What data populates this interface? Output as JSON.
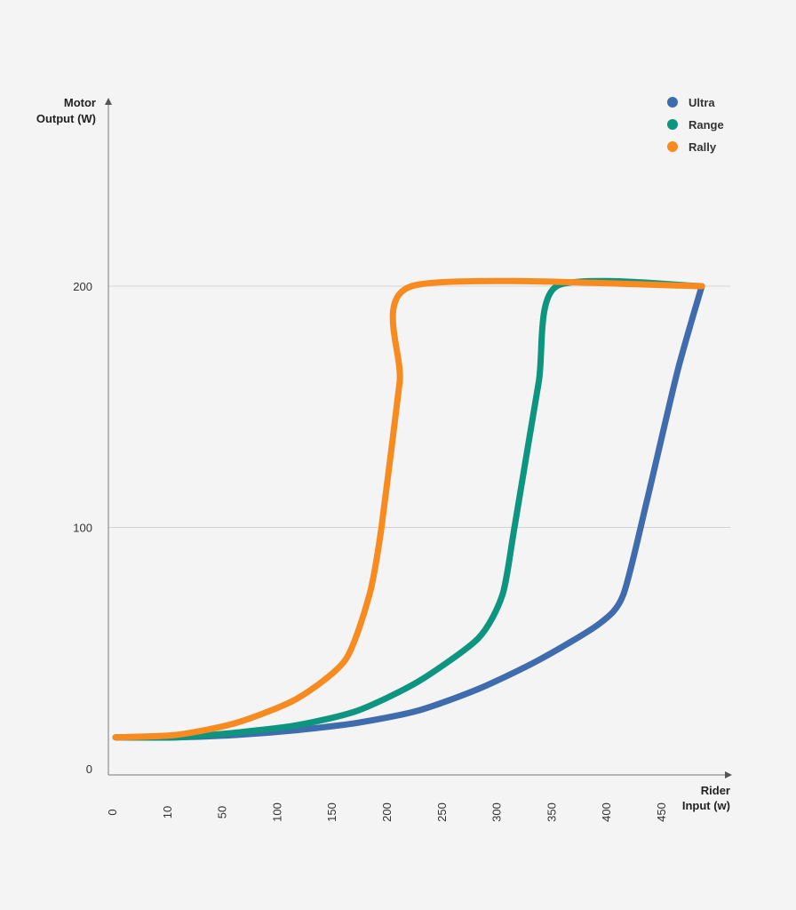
{
  "chart_data": {
    "type": "line",
    "title": "",
    "ylabel": [
      "Motor",
      "Output (W)"
    ],
    "xlabel": [
      "Rider",
      "Input (w)"
    ],
    "x_ticks": [
      "0",
      "10",
      "50",
      "100",
      "150",
      "200",
      "250",
      "300",
      "350",
      "400",
      "450"
    ],
    "y_ticks": [
      {
        "value": 0,
        "label": "0"
      },
      {
        "value": 100,
        "label": "100"
      },
      {
        "value": 200,
        "label": "200"
      }
    ],
    "ylim": [
      0,
      200
    ],
    "grid_y": true,
    "legend_position": "top-right",
    "series": [
      {
        "name": "Ultra",
        "color": "#3f6cad",
        "points": [
          [
            0,
            13
          ],
          [
            50,
            13
          ],
          [
            100,
            14
          ],
          [
            150,
            16
          ],
          [
            200,
            19
          ],
          [
            250,
            24
          ],
          [
            300,
            33
          ],
          [
            350,
            45
          ],
          [
            400,
            60
          ],
          [
            420,
            72
          ],
          [
            440,
            112
          ],
          [
            465,
            165
          ],
          [
            485,
            200
          ]
        ]
      },
      {
        "name": "Range",
        "color": "#0e957f",
        "points": [
          [
            0,
            13
          ],
          [
            50,
            13
          ],
          [
            100,
            15
          ],
          [
            150,
            18
          ],
          [
            200,
            24
          ],
          [
            250,
            36
          ],
          [
            300,
            54
          ],
          [
            320,
            72
          ],
          [
            330,
            100
          ],
          [
            350,
            160
          ],
          [
            365,
            200
          ],
          [
            485,
            200
          ]
        ]
      },
      {
        "name": "Rally",
        "color": "#f78b1f",
        "points": [
          [
            0,
            13
          ],
          [
            50,
            14
          ],
          [
            100,
            19
          ],
          [
            150,
            29
          ],
          [
            190,
            45
          ],
          [
            210,
            72
          ],
          [
            220,
            100
          ],
          [
            235,
            160
          ],
          [
            245,
            200
          ],
          [
            485,
            200
          ]
        ]
      }
    ]
  }
}
